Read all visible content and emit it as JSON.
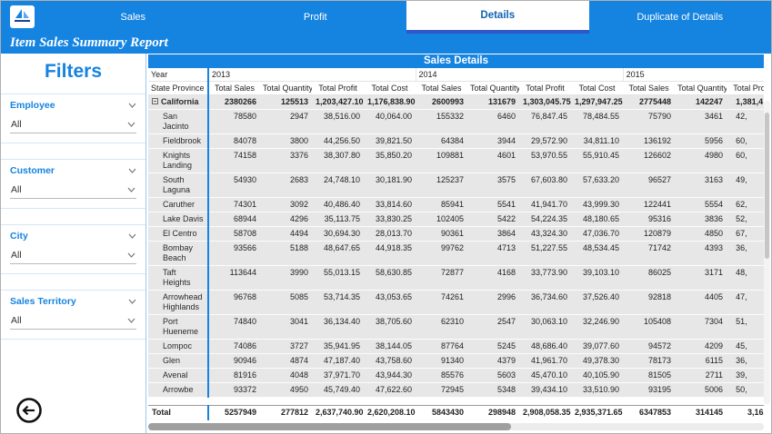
{
  "colors": {
    "primary_blue": "#1583e0",
    "active_tab_text": "#0f62b0",
    "active_tab_underline": "#2e57c9",
    "row_background": "#e7e7e7"
  },
  "logo_icon": "sailboat-logo",
  "nav": {
    "tabs": [
      {
        "label": "Sales",
        "active": false
      },
      {
        "label": "Profit",
        "active": false
      },
      {
        "label": "Details",
        "active": true
      },
      {
        "label": "Duplicate of Details",
        "active": false
      }
    ]
  },
  "report": {
    "title": "Item Sales Summary Report"
  },
  "filters": {
    "title": "Filters",
    "groups": [
      {
        "label": "Employee",
        "value": "All"
      },
      {
        "label": "Customer",
        "value": "All"
      },
      {
        "label": "City",
        "value": "All"
      },
      {
        "label": "Sales Territory",
        "value": "All"
      }
    ]
  },
  "back_button_icon": "circled-left-arrow",
  "table": {
    "title": "Sales Details",
    "year_label": "Year",
    "row_header_label": "State Province",
    "years": [
      "2013",
      "2014",
      "2015"
    ],
    "measures": [
      "Total Sales",
      "Total Quantity",
      "Total Profit",
      "Total Cost"
    ],
    "rows": [
      {
        "name": "California",
        "level": 0,
        "bold": true,
        "expanded": true,
        "values": [
          "2380266",
          "125513",
          "1,203,427.10",
          "1,176,838.90",
          "2600993",
          "131679",
          "1,303,045.75",
          "1,297,947.25",
          "2775448",
          "142247",
          "1,381,4"
        ]
      },
      {
        "name": "San Jacinto",
        "level": 1,
        "values": [
          "78580",
          "2947",
          "38,516.00",
          "40,064.00",
          "155332",
          "6460",
          "76,847.45",
          "78,484.55",
          "75790",
          "3461",
          "42,"
        ]
      },
      {
        "name": "Fieldbrook",
        "level": 1,
        "values": [
          "84078",
          "3800",
          "44,256.50",
          "39,821.50",
          "64384",
          "3944",
          "29,572.90",
          "34,811.10",
          "136192",
          "5956",
          "60,"
        ]
      },
      {
        "name": "Knights Landing",
        "level": 1,
        "values": [
          "74158",
          "3376",
          "38,307.80",
          "35,850.20",
          "109881",
          "4601",
          "53,970.55",
          "55,910.45",
          "126602",
          "4980",
          "60,"
        ]
      },
      {
        "name": "South Laguna",
        "level": 1,
        "values": [
          "54930",
          "2683",
          "24,748.10",
          "30,181.90",
          "125237",
          "3575",
          "67,603.80",
          "57,633.20",
          "96527",
          "3163",
          "49,"
        ]
      },
      {
        "name": "Caruther",
        "level": 1,
        "values": [
          "74301",
          "3092",
          "40,486.40",
          "33,814.60",
          "85941",
          "5541",
          "41,941.70",
          "43,999.30",
          "122441",
          "5554",
          "62,"
        ]
      },
      {
        "name": "Lake Davis",
        "level": 1,
        "values": [
          "68944",
          "4296",
          "35,113.75",
          "33,830.25",
          "102405",
          "5422",
          "54,224.35",
          "48,180.65",
          "95316",
          "3836",
          "52,"
        ]
      },
      {
        "name": "El Centro",
        "level": 1,
        "values": [
          "58708",
          "4494",
          "30,694.30",
          "28,013.70",
          "90361",
          "3864",
          "43,324.30",
          "47,036.70",
          "120879",
          "4850",
          "67,"
        ]
      },
      {
        "name": "Bombay Beach",
        "level": 1,
        "values": [
          "93566",
          "5188",
          "48,647.65",
          "44,918.35",
          "99762",
          "4713",
          "51,227.55",
          "48,534.45",
          "71742",
          "4393",
          "36,"
        ]
      },
      {
        "name": "Taft Heights",
        "level": 1,
        "values": [
          "113644",
          "3990",
          "55,013.15",
          "58,630.85",
          "72877",
          "4168",
          "33,773.90",
          "39,103.10",
          "86025",
          "3171",
          "48,"
        ]
      },
      {
        "name": "Arrowhead Highlands",
        "level": 1,
        "values": [
          "96768",
          "5085",
          "53,714.35",
          "43,053.65",
          "74261",
          "2996",
          "36,734.60",
          "37,526.40",
          "92818",
          "4405",
          "47,"
        ]
      },
      {
        "name": "Port Hueneme",
        "level": 1,
        "values": [
          "74840",
          "3041",
          "36,134.40",
          "38,705.60",
          "62310",
          "2547",
          "30,063.10",
          "32,246.90",
          "105408",
          "7304",
          "51,"
        ]
      },
      {
        "name": "Lompoc",
        "level": 1,
        "values": [
          "74086",
          "3727",
          "35,941.95",
          "38,144.05",
          "87764",
          "5245",
          "48,686.40",
          "39,077.60",
          "94572",
          "4209",
          "45,"
        ]
      },
      {
        "name": "Glen",
        "level": 1,
        "values": [
          "90946",
          "4874",
          "47,187.40",
          "43,758.60",
          "91340",
          "4379",
          "41,961.70",
          "49,378.30",
          "78173",
          "6115",
          "36,"
        ]
      },
      {
        "name": "Avenal",
        "level": 1,
        "values": [
          "81916",
          "4048",
          "37,971.70",
          "43,944.30",
          "85576",
          "5603",
          "45,470.10",
          "40,105.90",
          "81505",
          "2711",
          "39,"
        ]
      },
      {
        "name": "Arrowbe",
        "level": 1,
        "values": [
          "93372",
          "4950",
          "45,749.40",
          "47,622.60",
          "72945",
          "5348",
          "39,434.10",
          "33,510.90",
          "93195",
          "5006",
          "50,"
        ]
      }
    ],
    "total": {
      "label": "Total",
      "values": [
        "5257949",
        "277812",
        "2,637,740.90",
        "2,620,208.10",
        "5843430",
        "298948",
        "2,908,058.35",
        "2,935,371.65",
        "6347853",
        "314145",
        "3,162,0"
      ]
    }
  },
  "scrollbars": {
    "horizontal": {
      "thumb_width_pct": 59
    },
    "vertical": {
      "thumb_top_pct": 4,
      "thumb_height_pct": 48
    }
  }
}
